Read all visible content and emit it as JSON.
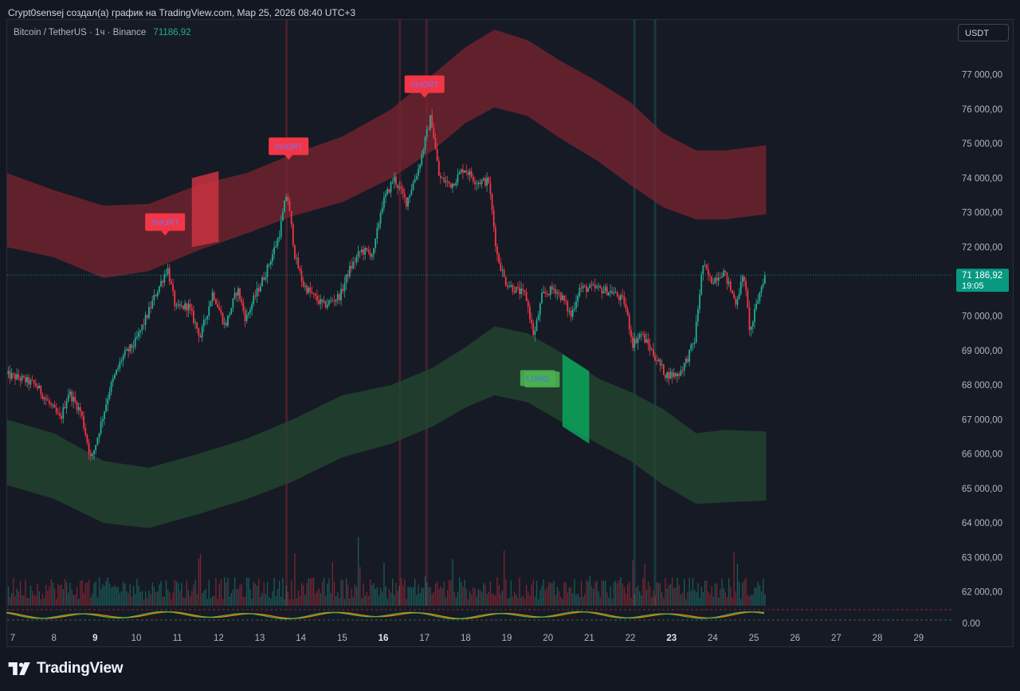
{
  "header": {
    "caption": "Crypt0sensej создал(а) график на TradingView.com, Мар 25, 2026 08:40 UTC+3"
  },
  "legend": {
    "symbol": "Bitcoin / TetherUS · 1ч · Binance",
    "price": "71186,92"
  },
  "toolbar": {
    "currency": "USDT"
  },
  "footer": {
    "brand": "TradingView"
  },
  "colors": {
    "background": "#161a25",
    "up": "#22ab94",
    "down": "#f23645",
    "upper_band": "#7d2430",
    "lower_band": "#23472f",
    "short_label": "#f23645",
    "long_label": "#4caf50",
    "last_price": "#089981"
  },
  "chart_data": {
    "type": "candlestick",
    "title": "",
    "xlabel": "",
    "ylabel": "",
    "ylim": [
      61600,
      78400
    ],
    "y_ticks": [
      "77 000,00",
      "76 000,00",
      "75 000,00",
      "74 000,00",
      "73 000,00",
      "72 000,00",
      "70 000,00",
      "69 000,00",
      "68 000,00",
      "67 000,00",
      "66 000,00",
      "65 000,00",
      "64 000,00",
      "63 000,00",
      "62 000,00"
    ],
    "x_ticks": [
      {
        "label": "7",
        "day": 7,
        "bold": false
      },
      {
        "label": "8",
        "day": 8,
        "bold": false
      },
      {
        "label": "9",
        "day": 9,
        "bold": true
      },
      {
        "label": "10",
        "day": 10,
        "bold": false
      },
      {
        "label": "11",
        "day": 11,
        "bold": false
      },
      {
        "label": "12",
        "day": 12,
        "bold": false
      },
      {
        "label": "13",
        "day": 13,
        "bold": false
      },
      {
        "label": "14",
        "day": 14,
        "bold": false
      },
      {
        "label": "15",
        "day": 15,
        "bold": false
      },
      {
        "label": "16",
        "day": 16,
        "bold": true
      },
      {
        "label": "17",
        "day": 17,
        "bold": false
      },
      {
        "label": "18",
        "day": 18,
        "bold": false
      },
      {
        "label": "19",
        "day": 19,
        "bold": false
      },
      {
        "label": "20",
        "day": 20,
        "bold": false
      },
      {
        "label": "21",
        "day": 21,
        "bold": false
      },
      {
        "label": "22",
        "day": 22,
        "bold": false
      },
      {
        "label": "23",
        "day": 23,
        "bold": true
      },
      {
        "label": "24",
        "day": 24,
        "bold": false
      },
      {
        "label": "25",
        "day": 25,
        "bold": false
      },
      {
        "label": "26",
        "day": 26,
        "bold": false
      },
      {
        "label": "27",
        "day": 27,
        "bold": false
      },
      {
        "label": "28",
        "day": 28,
        "bold": false
      },
      {
        "label": "29",
        "day": 29,
        "bold": false
      }
    ],
    "last_price": {
      "label": "71 186,92",
      "value": 71186.92,
      "countdown": "19:05"
    },
    "oscillator": {
      "zero_label": "0.00",
      "series_colors": [
        "#4caf50",
        "#f57c00"
      ]
    },
    "price_path": [
      [
        6.85,
        68300
      ],
      [
        7.2,
        68200
      ],
      [
        7.6,
        68000
      ],
      [
        7.9,
        67500
      ],
      [
        8.2,
        67000
      ],
      [
        8.4,
        67800
      ],
      [
        8.7,
        67200
      ],
      [
        8.95,
        65800
      ],
      [
        9.1,
        66500
      ],
      [
        9.4,
        67900
      ],
      [
        9.7,
        68800
      ],
      [
        10.0,
        69200
      ],
      [
        10.3,
        70000
      ],
      [
        10.5,
        70600
      ],
      [
        10.8,
        71400
      ],
      [
        11.0,
        70200
      ],
      [
        11.3,
        70300
      ],
      [
        11.6,
        69400
      ],
      [
        11.9,
        70700
      ],
      [
        12.2,
        69700
      ],
      [
        12.5,
        70800
      ],
      [
        12.7,
        69900
      ],
      [
        12.9,
        70500
      ],
      [
        13.2,
        71300
      ],
      [
        13.5,
        72300
      ],
      [
        13.7,
        73600
      ],
      [
        13.9,
        71700
      ],
      [
        14.1,
        70900
      ],
      [
        14.4,
        70500
      ],
      [
        14.6,
        70300
      ],
      [
        15.0,
        70600
      ],
      [
        15.2,
        71300
      ],
      [
        15.5,
        71900
      ],
      [
        15.8,
        71800
      ],
      [
        16.0,
        73200
      ],
      [
        16.3,
        74000
      ],
      [
        16.6,
        73300
      ],
      [
        16.9,
        74300
      ],
      [
        17.2,
        75800
      ],
      [
        17.4,
        74000
      ],
      [
        17.7,
        73800
      ],
      [
        18.0,
        74300
      ],
      [
        18.3,
        73900
      ],
      [
        18.6,
        73900
      ],
      [
        18.8,
        71800
      ],
      [
        19.0,
        71000
      ],
      [
        19.2,
        70800
      ],
      [
        19.5,
        70600
      ],
      [
        19.7,
        69400
      ],
      [
        19.9,
        70600
      ],
      [
        20.2,
        70800
      ],
      [
        20.4,
        70500
      ],
      [
        20.6,
        70000
      ],
      [
        20.8,
        70800
      ],
      [
        21.2,
        70800
      ],
      [
        21.6,
        70700
      ],
      [
        21.9,
        70400
      ],
      [
        22.1,
        69200
      ],
      [
        22.3,
        69500
      ],
      [
        22.6,
        68900
      ],
      [
        22.9,
        68300
      ],
      [
        23.2,
        68300
      ],
      [
        23.4,
        68700
      ],
      [
        23.6,
        69300
      ],
      [
        23.8,
        71500
      ],
      [
        24.0,
        71000
      ],
      [
        24.3,
        71300
      ],
      [
        24.6,
        70400
      ],
      [
        24.8,
        71200
      ],
      [
        24.95,
        69500
      ],
      [
        25.1,
        70300
      ],
      [
        25.3,
        71186.92
      ]
    ],
    "upper_band": {
      "top": [
        [
          6.85,
          74150
        ],
        [
          8.0,
          73650
        ],
        [
          9.2,
          73200
        ],
        [
          10.3,
          73250
        ],
        [
          11.5,
          73800
        ],
        [
          12.7,
          74150
        ],
        [
          13.8,
          74700
        ],
        [
          15.0,
          75200
        ],
        [
          16.2,
          76000
        ],
        [
          17.2,
          77000
        ],
        [
          18.0,
          77800
        ],
        [
          18.7,
          78300
        ],
        [
          19.5,
          78000
        ],
        [
          20.3,
          77400
        ],
        [
          21.2,
          76800
        ],
        [
          22.0,
          76200
        ],
        [
          22.8,
          75300
        ],
        [
          23.6,
          74800
        ],
        [
          24.3,
          74800
        ],
        [
          25.3,
          74950
        ]
      ],
      "bottom": [
        [
          6.85,
          72000
        ],
        [
          8.0,
          71700
        ],
        [
          9.2,
          71100
        ],
        [
          10.3,
          71300
        ],
        [
          11.5,
          71900
        ],
        [
          12.7,
          72400
        ],
        [
          13.8,
          72900
        ],
        [
          15.0,
          73300
        ],
        [
          16.2,
          74000
        ],
        [
          17.2,
          74800
        ],
        [
          18.0,
          75600
        ],
        [
          18.7,
          76050
        ],
        [
          19.5,
          75800
        ],
        [
          20.3,
          75150
        ],
        [
          21.2,
          74500
        ],
        [
          22.0,
          73800
        ],
        [
          22.8,
          73150
        ],
        [
          23.6,
          72800
        ],
        [
          24.3,
          72800
        ],
        [
          25.3,
          72950
        ]
      ]
    },
    "lower_band": {
      "top": [
        [
          6.85,
          67000
        ],
        [
          8.0,
          66600
        ],
        [
          9.2,
          65800
        ],
        [
          10.3,
          65600
        ],
        [
          11.5,
          66000
        ],
        [
          12.7,
          66450
        ],
        [
          13.8,
          67000
        ],
        [
          15.0,
          67700
        ],
        [
          16.2,
          68000
        ],
        [
          17.2,
          68500
        ],
        [
          18.0,
          69100
        ],
        [
          18.7,
          69700
        ],
        [
          19.5,
          69500
        ],
        [
          20.3,
          68950
        ],
        [
          21.2,
          68200
        ],
        [
          22.0,
          67800
        ],
        [
          22.8,
          67300
        ],
        [
          23.6,
          66600
        ],
        [
          24.3,
          66700
        ],
        [
          25.3,
          66650
        ]
      ],
      "bottom": [
        [
          6.85,
          65100
        ],
        [
          8.0,
          64700
        ],
        [
          9.2,
          64000
        ],
        [
          10.3,
          63850
        ],
        [
          11.5,
          64250
        ],
        [
          12.7,
          64700
        ],
        [
          13.8,
          65200
        ],
        [
          15.0,
          65900
        ],
        [
          16.2,
          66300
        ],
        [
          17.2,
          66800
        ],
        [
          18.0,
          67350
        ],
        [
          18.7,
          67700
        ],
        [
          19.5,
          67500
        ],
        [
          20.3,
          66950
        ],
        [
          21.2,
          66300
        ],
        [
          22.0,
          65800
        ],
        [
          22.8,
          65100
        ],
        [
          23.6,
          64550
        ],
        [
          24.3,
          64600
        ],
        [
          25.3,
          64650
        ]
      ]
    },
    "zones": [
      {
        "type": "short",
        "x0": 11.35,
        "x1": 12.0,
        "y0a": 74000,
        "y0b": 74200,
        "y1a": 72000,
        "y1b": 72150
      },
      {
        "type": "long",
        "x0": 20.35,
        "x1": 21.0,
        "y0a": 68900,
        "y0b": 68400,
        "y1a": 66800,
        "y1b": 66300
      }
    ],
    "signals": [
      {
        "type": "short",
        "label": "SHORT",
        "day": 10.7,
        "price": 72700
      },
      {
        "type": "short",
        "label": "SHORT",
        "day": 13.7,
        "price": 74900
      },
      {
        "type": "short",
        "label": "SHORT",
        "day": 17.0,
        "price": 76700
      },
      {
        "type": "long",
        "label": "LONG",
        "day": 19.8,
        "price": 68300
      },
      {
        "type": "long",
        "label": "LONG",
        "day": 19.75,
        "price": 68200
      }
    ],
    "vlines": [
      {
        "day": 13.65,
        "color": "#f23645"
      },
      {
        "day": 16.4,
        "color": "#f23645"
      },
      {
        "day": 17.05,
        "color": "#f23645"
      },
      {
        "day": 22.1,
        "color": "#22ab94"
      },
      {
        "day": 22.6,
        "color": "#22ab94"
      }
    ]
  }
}
